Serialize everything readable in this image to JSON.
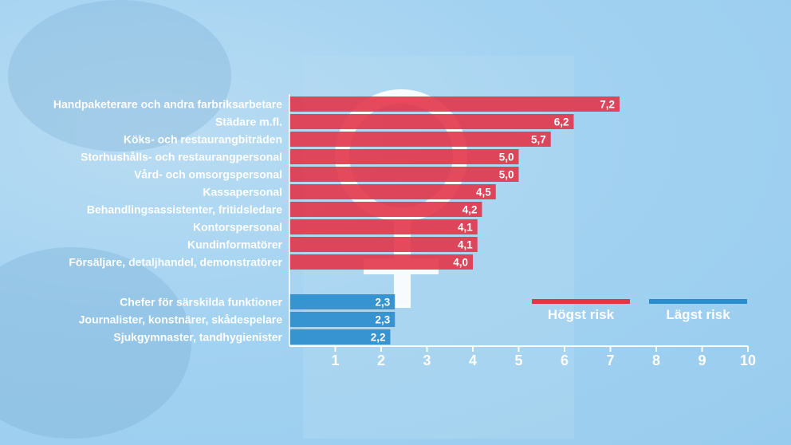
{
  "chart_data": {
    "type": "bar",
    "orientation": "horizontal",
    "xlim": [
      0,
      10
    ],
    "x_ticks": [
      "1",
      "2",
      "3",
      "4",
      "5",
      "6",
      "7",
      "8",
      "9",
      "10"
    ],
    "series": [
      {
        "name": "Högst risk",
        "color": "#e2354a",
        "categories": [
          "Handpaketerare och andra farbriksarbetare",
          "Städare m.fl.",
          "Köks- och restaurangbiträden",
          "Storhushålls- och restaurangpersonal",
          "Vård- och omsorgspersonal",
          "Kassapersonal",
          "Behandlingsassistenter, fritidsledare",
          "Kontorspersonal",
          "Kundinformatörer",
          "Försäljare, detaljhandel, demonstratörer"
        ],
        "values": [
          7.2,
          6.2,
          5.7,
          5.0,
          5.0,
          4.5,
          4.2,
          4.1,
          4.1,
          4.0
        ],
        "value_labels": [
          "7,2",
          "6,2",
          "5,7",
          "5,0",
          "5,0",
          "4,5",
          "4,2",
          "4,1",
          "4,1",
          "4,0"
        ]
      },
      {
        "name": "Lägst risk",
        "color": "#2a8dcc",
        "categories": [
          "Chefer för särskilda funktioner",
          "Journalister, konstnärer, skådespelare",
          "Sjukgymnaster, tandhygienister"
        ],
        "values": [
          2.3,
          2.3,
          2.2
        ],
        "value_labels": [
          "2,3",
          "2,3",
          "2,2"
        ]
      }
    ],
    "legend": [
      {
        "label": "Högst risk",
        "color": "#e2354a"
      },
      {
        "label": "Lägst risk",
        "color": "#2a8dcc"
      }
    ],
    "legend_placement": "bottom-right",
    "grid": false
  }
}
